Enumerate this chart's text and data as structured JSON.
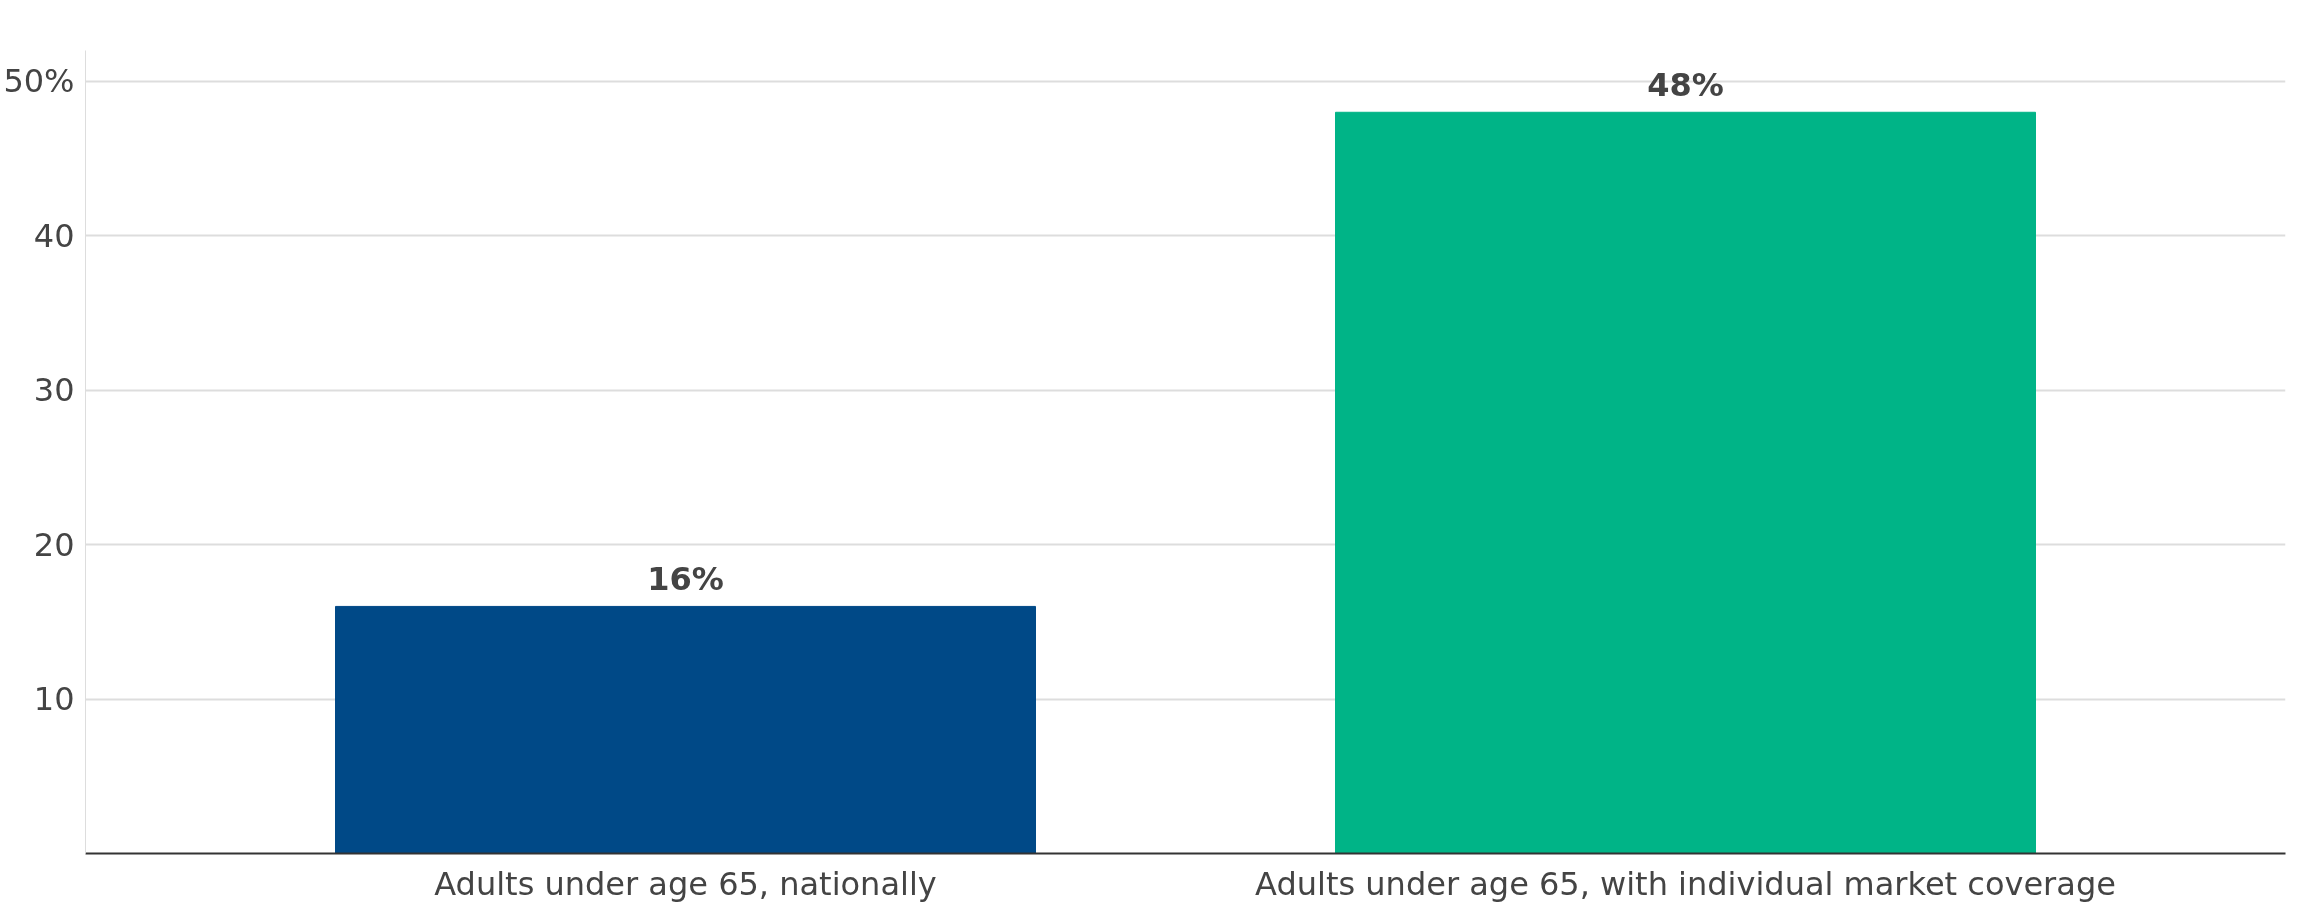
{
  "chart_data": {
    "type": "bar",
    "categories": [
      "Adults under age 65, nationally",
      "Adults under age 65, with individual market coverage"
    ],
    "values": [
      16,
      48
    ],
    "colors": [
      "#004987",
      "#00b487"
    ],
    "value_labels": [
      "16%",
      "48%"
    ],
    "ylim": [
      0,
      52
    ],
    "yticks": [
      10,
      20,
      30,
      40,
      {
        "value": 50,
        "label": "50%"
      }
    ],
    "grid": "y"
  }
}
